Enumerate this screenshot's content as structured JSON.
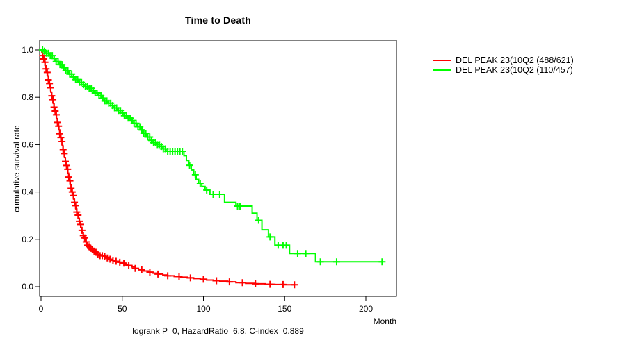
{
  "title": "Time to Death",
  "axis": {
    "xlabel": "Month",
    "ylabel": "cumulative survival rate",
    "x_ticks": [
      "0",
      "50",
      "100",
      "150",
      "200"
    ],
    "y_ticks": [
      "0.0",
      "0.2",
      "0.4",
      "0.6",
      "0.8",
      "1.0"
    ]
  },
  "footer": "logrank P=0, HazardRatio=6.8, C-index=0.889",
  "legend": {
    "items": [
      {
        "label": "DEL PEAK 23(10Q2 (488/621)",
        "color": "#FF0000"
      },
      {
        "label": "DEL PEAK 23(10Q2 (110/457)",
        "color": "#00FF00"
      }
    ]
  },
  "chart_data": {
    "type": "line",
    "subtype": "kaplan-meier-step",
    "title": "Time to Death",
    "xlabel": "Month",
    "ylabel": "cumulative survival rate",
    "xlim": [
      0,
      219
    ],
    "ylim": [
      -0.04,
      1.04
    ],
    "x_tick_values": [
      0,
      50,
      100,
      150,
      200
    ],
    "y_tick_values": [
      0.0,
      0.2,
      0.4,
      0.6,
      0.8,
      1.0
    ],
    "grid": false,
    "legend_position": "right-outside",
    "series": [
      {
        "name": "DEL PEAK 23(10Q2 (488/621)",
        "color": "#FF0000",
        "steps": [
          [
            0,
            1.0
          ],
          [
            0.5,
            0.99
          ],
          [
            1,
            0.976
          ],
          [
            1.5,
            0.962
          ],
          [
            2,
            0.948
          ],
          [
            2.5,
            0.934
          ],
          [
            3,
            0.92
          ],
          [
            3.5,
            0.905
          ],
          [
            4,
            0.89
          ],
          [
            4.5,
            0.874
          ],
          [
            5,
            0.858
          ],
          [
            5.5,
            0.84
          ],
          [
            6,
            0.822
          ],
          [
            6.5,
            0.806
          ],
          [
            7,
            0.79
          ],
          [
            7.5,
            0.774
          ],
          [
            8,
            0.758
          ],
          [
            8.5,
            0.742
          ],
          [
            9,
            0.726
          ],
          [
            9.5,
            0.71
          ],
          [
            10,
            0.694
          ],
          [
            10.5,
            0.678
          ],
          [
            11,
            0.662
          ],
          [
            11.5,
            0.646
          ],
          [
            12,
            0.63
          ],
          [
            12.5,
            0.613
          ],
          [
            13,
            0.596
          ],
          [
            13.5,
            0.579
          ],
          [
            14,
            0.562
          ],
          [
            14.5,
            0.545
          ],
          [
            15,
            0.529
          ],
          [
            15.5,
            0.512
          ],
          [
            16,
            0.496
          ],
          [
            16.5,
            0.479
          ],
          [
            17,
            0.463
          ],
          [
            17.5,
            0.447
          ],
          [
            18,
            0.431
          ],
          [
            18.5,
            0.415
          ],
          [
            19,
            0.4
          ],
          [
            19.5,
            0.385
          ],
          [
            20,
            0.37
          ],
          [
            20.5,
            0.356
          ],
          [
            21,
            0.342
          ],
          [
            21.5,
            0.328
          ],
          [
            22,
            0.315
          ],
          [
            22.5,
            0.302
          ],
          [
            23,
            0.289
          ],
          [
            23.5,
            0.276
          ],
          [
            24,
            0.263
          ],
          [
            24.5,
            0.25
          ],
          [
            25,
            0.238
          ],
          [
            25.5,
            0.227
          ],
          [
            26,
            0.216
          ],
          [
            26.5,
            0.206
          ],
          [
            27,
            0.197
          ],
          [
            27.5,
            0.189
          ],
          [
            28,
            0.182
          ],
          [
            28.5,
            0.175
          ],
          [
            29,
            0.169
          ],
          [
            30,
            0.162
          ],
          [
            31,
            0.156
          ],
          [
            32,
            0.15
          ],
          [
            33,
            0.145
          ],
          [
            34,
            0.14
          ],
          [
            35,
            0.135
          ],
          [
            36,
            0.131
          ],
          [
            38,
            0.126
          ],
          [
            40,
            0.121
          ],
          [
            42,
            0.116
          ],
          [
            44,
            0.111
          ],
          [
            46,
            0.107
          ],
          [
            48,
            0.103
          ],
          [
            50,
            0.099
          ],
          [
            52,
            0.094
          ],
          [
            54,
            0.089
          ],
          [
            56,
            0.083
          ],
          [
            58,
            0.077
          ],
          [
            60,
            0.071
          ],
          [
            63,
            0.066
          ],
          [
            66,
            0.061
          ],
          [
            69,
            0.057
          ],
          [
            72,
            0.053
          ],
          [
            75,
            0.049
          ],
          [
            78,
            0.046
          ],
          [
            82,
            0.043
          ],
          [
            86,
            0.04
          ],
          [
            90,
            0.037
          ],
          [
            94,
            0.034
          ],
          [
            98,
            0.031
          ],
          [
            102,
            0.028
          ],
          [
            106,
            0.025
          ],
          [
            110,
            0.023
          ],
          [
            115,
            0.02
          ],
          [
            120,
            0.017
          ],
          [
            126,
            0.014
          ],
          [
            132,
            0.012
          ],
          [
            138,
            0.01
          ],
          [
            144,
            0.009
          ],
          [
            150,
            0.008
          ],
          [
            156,
            0.008
          ]
        ],
        "censor_months": [
          1.0,
          1.7,
          2.4,
          3.1,
          3.8,
          4.5,
          5.2,
          5.9,
          6.6,
          7.3,
          8.0,
          8.7,
          9.4,
          10.1,
          10.8,
          11.5,
          12.2,
          12.9,
          13.6,
          14.3,
          15.0,
          15.7,
          16.4,
          17.1,
          17.8,
          18.5,
          19.2,
          19.9,
          20.6,
          21.3,
          22.0,
          22.8,
          23.6,
          24.4,
          25.2,
          26.0,
          26.9,
          27.8,
          28.7,
          29.6,
          30.6,
          31.6,
          32.7,
          33.8,
          35.0,
          36.3,
          37.7,
          39.2,
          40.8,
          42.5,
          44.3,
          46.2,
          48.5,
          51,
          54,
          58,
          62,
          67,
          72,
          78,
          85,
          92,
          100,
          108,
          116,
          124,
          132,
          141,
          149,
          156
        ]
      },
      {
        "name": "DEL PEAK 23(10Q2 (110/457)",
        "color": "#00FF00",
        "steps": [
          [
            0,
            1.0
          ],
          [
            1,
            0.995
          ],
          [
            3,
            0.986
          ],
          [
            5,
            0.976
          ],
          [
            7,
            0.964
          ],
          [
            9,
            0.951
          ],
          [
            11,
            0.938
          ],
          [
            13,
            0.925
          ],
          [
            15,
            0.912
          ],
          [
            17,
            0.898
          ],
          [
            19,
            0.886
          ],
          [
            21,
            0.875
          ],
          [
            23,
            0.863
          ],
          [
            25,
            0.853
          ],
          [
            27,
            0.845
          ],
          [
            29,
            0.838
          ],
          [
            31,
            0.828
          ],
          [
            33,
            0.818
          ],
          [
            35,
            0.807
          ],
          [
            37,
            0.796
          ],
          [
            39,
            0.785
          ],
          [
            41,
            0.775
          ],
          [
            43,
            0.765
          ],
          [
            45,
            0.755
          ],
          [
            47,
            0.744
          ],
          [
            49,
            0.734
          ],
          [
            51,
            0.722
          ],
          [
            53,
            0.712
          ],
          [
            55,
            0.702
          ],
          [
            57,
            0.69
          ],
          [
            59,
            0.676
          ],
          [
            61,
            0.662
          ],
          [
            63,
            0.648
          ],
          [
            65,
            0.632
          ],
          [
            67,
            0.618
          ],
          [
            69,
            0.608
          ],
          [
            71,
            0.6
          ],
          [
            73,
            0.592
          ],
          [
            75,
            0.582
          ],
          [
            77,
            0.572
          ],
          [
            88,
            0.553
          ],
          [
            89.5,
            0.533
          ],
          [
            91,
            0.513
          ],
          [
            92.5,
            0.493
          ],
          [
            94,
            0.473
          ],
          [
            95.5,
            0.453
          ],
          [
            97,
            0.437
          ],
          [
            99,
            0.423
          ],
          [
            101,
            0.408
          ],
          [
            104,
            0.39
          ],
          [
            113,
            0.356
          ],
          [
            120,
            0.34
          ],
          [
            130,
            0.31
          ],
          [
            133,
            0.28
          ],
          [
            136,
            0.24
          ],
          [
            140,
            0.21
          ],
          [
            144,
            0.175
          ],
          [
            153,
            0.14
          ],
          [
            169,
            0.105
          ],
          [
            210,
            0.105
          ]
        ],
        "censor_months": [
          0.9,
          2.1,
          3.3,
          4.5,
          5.7,
          6.9,
          8.1,
          9.3,
          10.5,
          11.7,
          12.9,
          14.1,
          15.3,
          16.5,
          17.7,
          18.9,
          20.1,
          21.3,
          22.5,
          23.7,
          24.9,
          26.1,
          27.3,
          28.5,
          29.7,
          30.9,
          32.1,
          33.3,
          34.5,
          35.7,
          36.9,
          38.1,
          39.3,
          40.5,
          41.7,
          42.9,
          44.1,
          45.3,
          46.5,
          47.7,
          48.9,
          50.1,
          51.3,
          52.5,
          53.7,
          54.9,
          56.1,
          57.3,
          58.5,
          59.7,
          60.9,
          62.1,
          63.3,
          64.5,
          65.7,
          66.9,
          68.1,
          69.3,
          70.5,
          71.7,
          72.9,
          74.1,
          75.3,
          76.5,
          78,
          79.5,
          81,
          82.5,
          84,
          85.5,
          87,
          91.5,
          95,
          98,
          102,
          106,
          110,
          121,
          122.5,
          134,
          141,
          146,
          149,
          151,
          158,
          163,
          172,
          182,
          210
        ]
      }
    ]
  }
}
